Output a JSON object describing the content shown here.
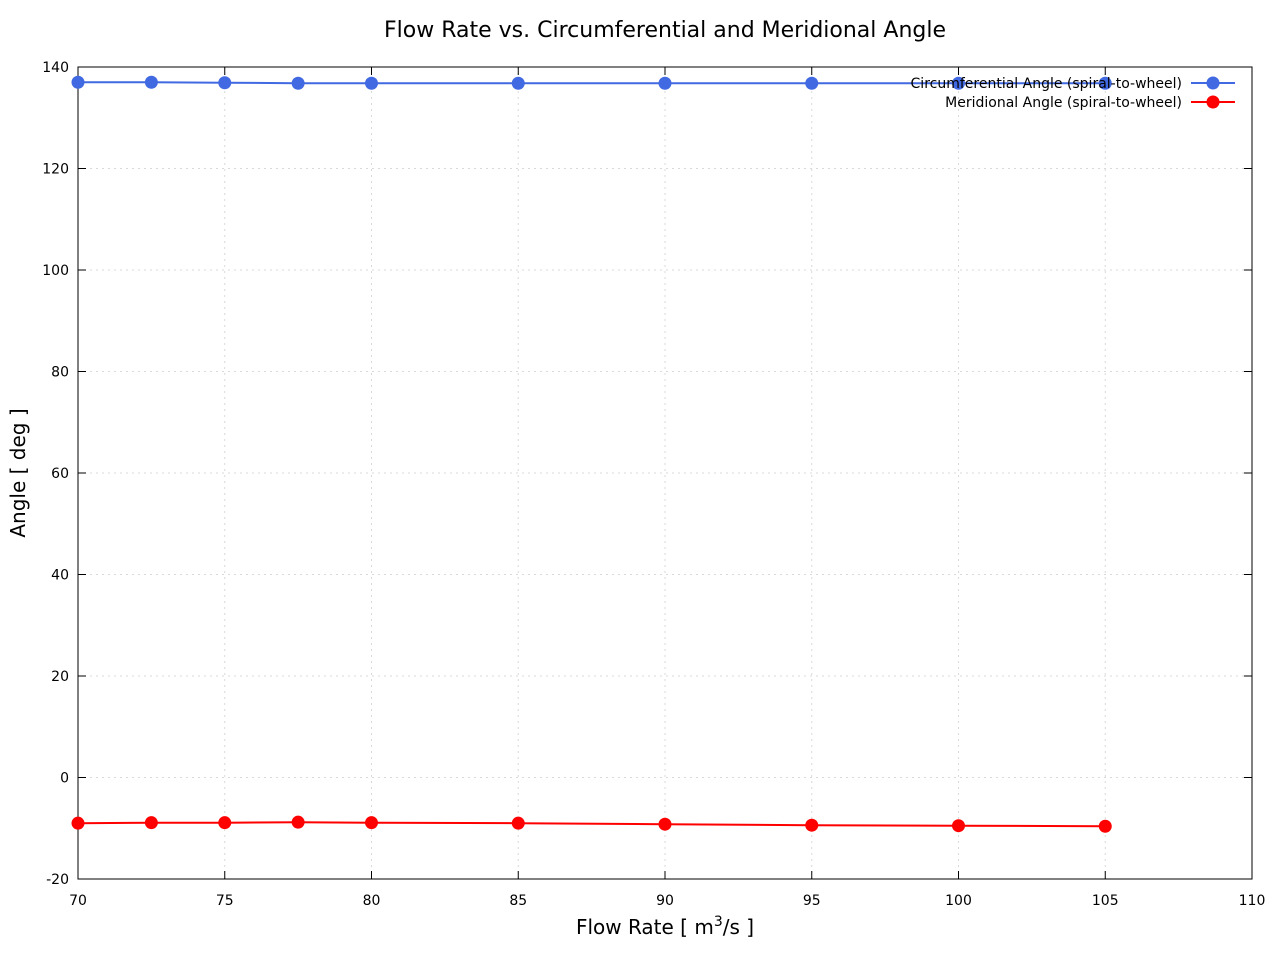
{
  "chart_data": {
    "type": "line",
    "title": "Flow Rate vs. Circumferential and Meridional Angle",
    "xlabel": {
      "prefix": "Flow Rate [ m",
      "superscript": "3",
      "suffix": "/s ]"
    },
    "ylabel": "Angle [ deg ]",
    "xlim": [
      70,
      110
    ],
    "ylim": [
      -20,
      140
    ],
    "xticks": [
      70,
      75,
      80,
      85,
      90,
      95,
      100,
      105,
      110
    ],
    "yticks": [
      -20,
      0,
      20,
      40,
      60,
      80,
      100,
      120,
      140
    ],
    "grid": true,
    "legend_position": "top-right",
    "x": [
      70,
      72.5,
      75,
      77.5,
      80,
      85,
      90,
      95,
      100,
      105
    ],
    "series": [
      {
        "name": "Circumferential Angle (spiral-to-wheel)",
        "color": "#4169e1",
        "marker": "circle",
        "values": [
          137.0,
          137.0,
          136.9,
          136.8,
          136.8,
          136.8,
          136.8,
          136.8,
          136.8,
          136.8
        ]
      },
      {
        "name": "Meridional Angle (spiral-to-wheel)",
        "color": "#ff0000",
        "marker": "circle",
        "values": [
          -9.0,
          -8.9,
          -8.9,
          -8.8,
          -8.9,
          -9.0,
          -9.2,
          -9.4,
          -9.5,
          -9.6
        ]
      }
    ]
  }
}
